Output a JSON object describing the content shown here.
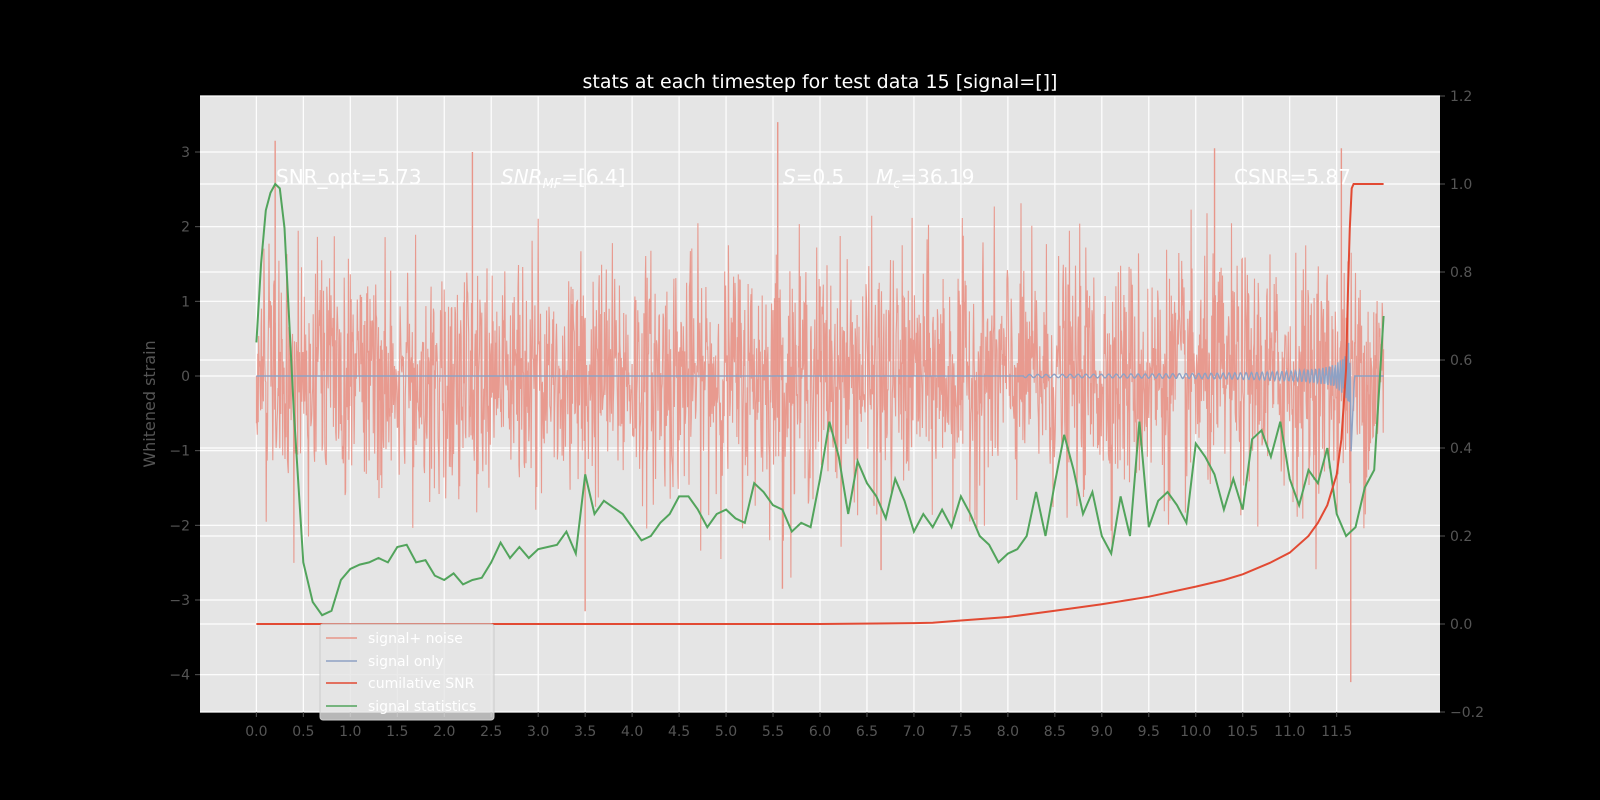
{
  "chart_data": {
    "type": "line",
    "title": "stats at each timestep for test data 15 [signal=[]]",
    "ylabel": "Whitened strain",
    "xlim": [
      -0.6,
      12.6
    ],
    "ylim": [
      -4.5,
      3.75
    ],
    "y2lim": [
      -0.2,
      1.2
    ],
    "grid": true,
    "legend_placement": "lower-left",
    "x_ticks": [
      "0.0",
      "0.5",
      "1.0",
      "1.5",
      "2.0",
      "2.5",
      "3.0",
      "3.5",
      "4.0",
      "4.5",
      "5.0",
      "5.5",
      "6.0",
      "6.5",
      "7.0",
      "7.5",
      "8.0",
      "8.5",
      "9.0",
      "9.5",
      "10.0",
      "10.5",
      "11.0",
      "11.5"
    ],
    "y_ticks": [
      3,
      2,
      1,
      0,
      -1,
      -2,
      -3,
      -4
    ],
    "y_tick_labels": [
      "3",
      "2",
      "1",
      "0",
      "−1",
      "−2",
      "−3",
      "−4"
    ],
    "y2_ticks": [
      1.2,
      1.0,
      0.8,
      0.6,
      0.4,
      0.2,
      0.0,
      -0.2
    ],
    "y2_tick_labels": [
      "1.2",
      "1.0",
      "0.8",
      "0.6",
      "0.4",
      "0.2",
      "0.0",
      "−0.2"
    ],
    "annotations": {
      "snr_opt": "SNR_opt=5.73",
      "snr_mf_main": "SNR",
      "snr_mf_sub": "MF",
      "snr_mf_value": "=[6.4]",
      "s_label": "S",
      "s_value": "=0.5",
      "mc_label": "M",
      "mc_sub": "c",
      "mc_value": "=36.19",
      "csnr": "CSNR=5.87"
    },
    "colors": {
      "noise": "#e8968a",
      "signal": "#8ea1c4",
      "csnr": "#e24a33",
      "stats": "#52a45c",
      "axes_bg": "#e5e5e5",
      "grid": "#ffffff"
    },
    "series": [
      {
        "name": "signal+ noise",
        "axis": "left",
        "style": "noise",
        "t_range": [
          0.0,
          12.0
        ],
        "envelope": 1.5,
        "peaks": [
          [
            0.2,
            3.15
          ],
          [
            2.3,
            3.0
          ],
          [
            3.5,
            -3.15
          ],
          [
            5.55,
            3.4
          ],
          [
            5.6,
            -2.85
          ],
          [
            6.0,
            1.2
          ],
          [
            6.65,
            -2.6
          ],
          [
            10.2,
            3.05
          ],
          [
            11.55,
            3.05
          ],
          [
            11.65,
            -4.1
          ]
        ]
      },
      {
        "name": "signal only",
        "axis": "left",
        "style": "chirp",
        "t_range": [
          0.0,
          12.0
        ],
        "merger_t": 11.65,
        "max_amp": 1.1
      },
      {
        "name": "cumilative SNR",
        "axis": "right",
        "x": [
          0.0,
          1.0,
          2.0,
          3.0,
          4.0,
          5.0,
          6.0,
          7.0,
          7.2,
          7.5,
          8.0,
          8.5,
          9.0,
          9.5,
          10.0,
          10.3,
          10.5,
          10.8,
          11.0,
          11.2,
          11.3,
          11.4,
          11.5,
          11.55,
          11.6,
          11.62,
          11.64,
          11.66,
          11.68,
          12.0
        ],
        "values": [
          0.0,
          0.0,
          0.0,
          0.0,
          0.0,
          0.0,
          0.0,
          0.002,
          0.003,
          0.008,
          0.016,
          0.03,
          0.045,
          0.062,
          0.085,
          0.1,
          0.113,
          0.14,
          0.162,
          0.2,
          0.23,
          0.27,
          0.34,
          0.42,
          0.58,
          0.75,
          0.9,
          0.99,
          1.0,
          1.0
        ]
      },
      {
        "name": "signal statistics",
        "axis": "right",
        "x": [
          0.0,
          0.05,
          0.1,
          0.15,
          0.2,
          0.25,
          0.3,
          0.4,
          0.5,
          0.6,
          0.7,
          0.8,
          0.9,
          1.0,
          1.1,
          1.2,
          1.3,
          1.4,
          1.5,
          1.6,
          1.7,
          1.8,
          1.9,
          2.0,
          2.1,
          2.2,
          2.3,
          2.4,
          2.5,
          2.6,
          2.7,
          2.8,
          2.9,
          3.0,
          3.1,
          3.2,
          3.3,
          3.4,
          3.5,
          3.6,
          3.7,
          3.8,
          3.9,
          4.0,
          4.1,
          4.2,
          4.3,
          4.4,
          4.5,
          4.6,
          4.7,
          4.8,
          4.9,
          5.0,
          5.1,
          5.2,
          5.3,
          5.4,
          5.5,
          5.6,
          5.7,
          5.8,
          5.9,
          6.0,
          6.1,
          6.2,
          6.3,
          6.4,
          6.5,
          6.6,
          6.7,
          6.8,
          6.9,
          7.0,
          7.1,
          7.2,
          7.3,
          7.4,
          7.5,
          7.6,
          7.7,
          7.8,
          7.9,
          8.0,
          8.1,
          8.2,
          8.3,
          8.4,
          8.5,
          8.6,
          8.7,
          8.8,
          8.9,
          9.0,
          9.1,
          9.2,
          9.3,
          9.4,
          9.5,
          9.6,
          9.7,
          9.8,
          9.9,
          10.0,
          10.1,
          10.2,
          10.3,
          10.4,
          10.5,
          10.6,
          10.7,
          10.8,
          10.9,
          11.0,
          11.1,
          11.2,
          11.3,
          11.4,
          11.5,
          11.6,
          11.7,
          11.8,
          11.9,
          12.0
        ],
        "values": [
          0.64,
          0.82,
          0.94,
          0.98,
          1.0,
          0.99,
          0.9,
          0.48,
          0.14,
          0.05,
          0.02,
          0.03,
          0.1,
          0.125,
          0.135,
          0.14,
          0.15,
          0.14,
          0.175,
          0.18,
          0.14,
          0.145,
          0.11,
          0.1,
          0.115,
          0.09,
          0.1,
          0.105,
          0.14,
          0.185,
          0.15,
          0.175,
          0.15,
          0.17,
          0.175,
          0.18,
          0.21,
          0.16,
          0.34,
          0.25,
          0.28,
          0.265,
          0.25,
          0.22,
          0.19,
          0.2,
          0.23,
          0.25,
          0.29,
          0.29,
          0.26,
          0.22,
          0.25,
          0.26,
          0.24,
          0.23,
          0.32,
          0.3,
          0.27,
          0.26,
          0.21,
          0.23,
          0.22,
          0.33,
          0.46,
          0.38,
          0.25,
          0.37,
          0.32,
          0.29,
          0.24,
          0.33,
          0.28,
          0.21,
          0.25,
          0.22,
          0.26,
          0.22,
          0.29,
          0.25,
          0.2,
          0.18,
          0.14,
          0.16,
          0.17,
          0.2,
          0.3,
          0.2,
          0.32,
          0.43,
          0.35,
          0.25,
          0.3,
          0.2,
          0.16,
          0.29,
          0.2,
          0.46,
          0.22,
          0.28,
          0.3,
          0.27,
          0.23,
          0.41,
          0.38,
          0.34,
          0.26,
          0.33,
          0.26,
          0.42,
          0.44,
          0.38,
          0.46,
          0.33,
          0.27,
          0.35,
          0.32,
          0.4,
          0.25,
          0.2,
          0.22,
          0.31,
          0.35,
          0.7
        ]
      }
    ]
  }
}
